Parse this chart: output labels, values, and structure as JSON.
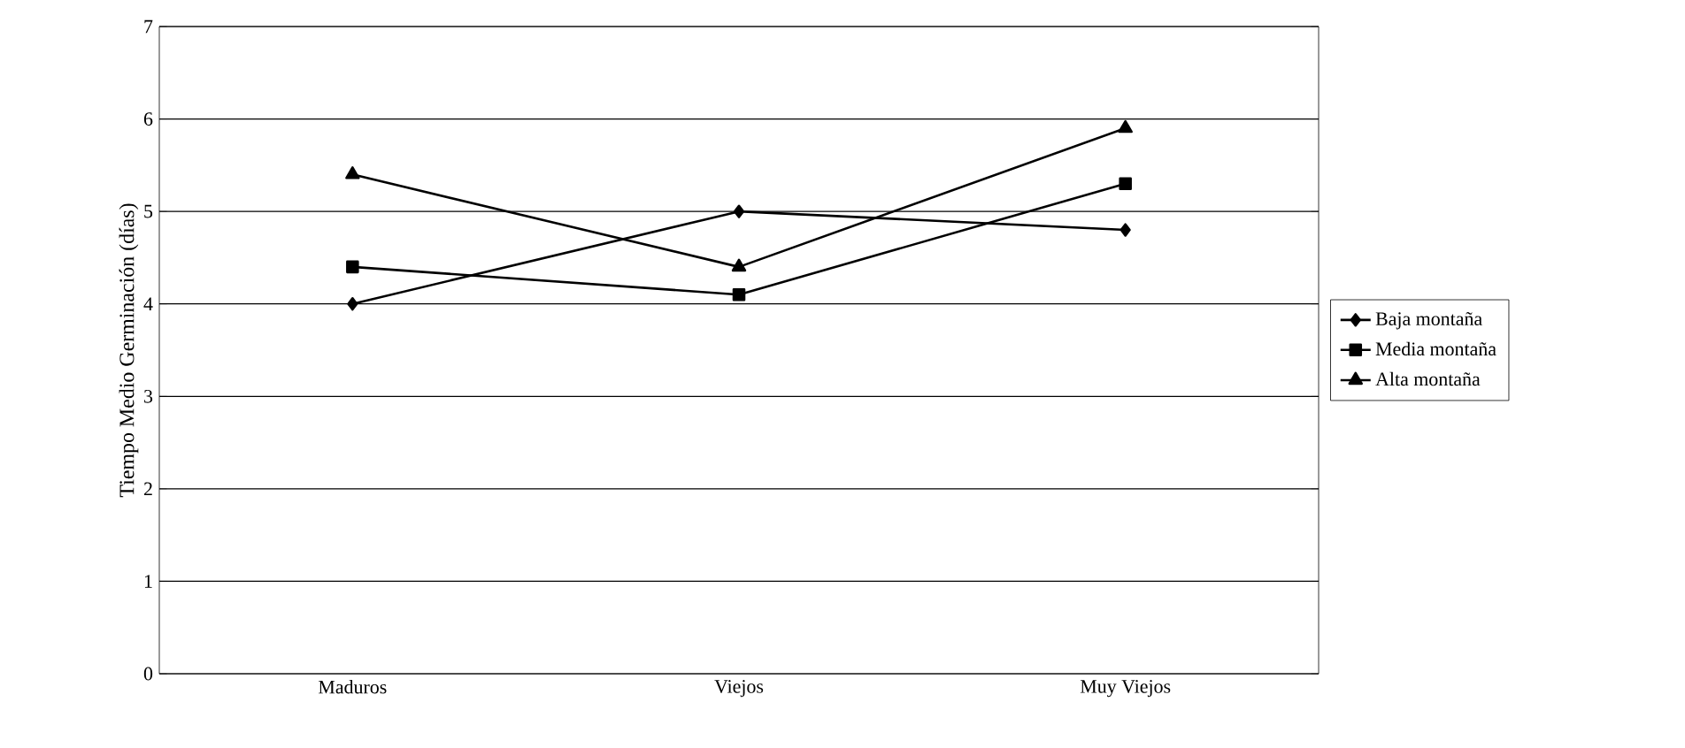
{
  "chart_data": {
    "type": "line",
    "ylabel": "Tiempo Medio Germinación (días)",
    "categories": [
      "Maduros",
      "Viejos",
      "Muy Viejos"
    ],
    "series": [
      {
        "name": "Baja montaña",
        "color": "#000000",
        "marker": "diamond",
        "values": [
          4.0,
          5.0,
          4.8
        ]
      },
      {
        "name": "Media montaña",
        "color": "#000000",
        "marker": "square",
        "values": [
          4.4,
          4.1,
          5.3
        ]
      },
      {
        "name": "Alta montaña",
        "color": "#000000",
        "marker": "triangle",
        "values": [
          5.4,
          4.4,
          5.9
        ]
      }
    ],
    "ylim": [
      0,
      7
    ],
    "yticks": [
      0,
      1,
      2,
      3,
      4,
      5,
      6,
      7
    ],
    "grid": "y",
    "legend": "right",
    "line_style": "solid"
  }
}
